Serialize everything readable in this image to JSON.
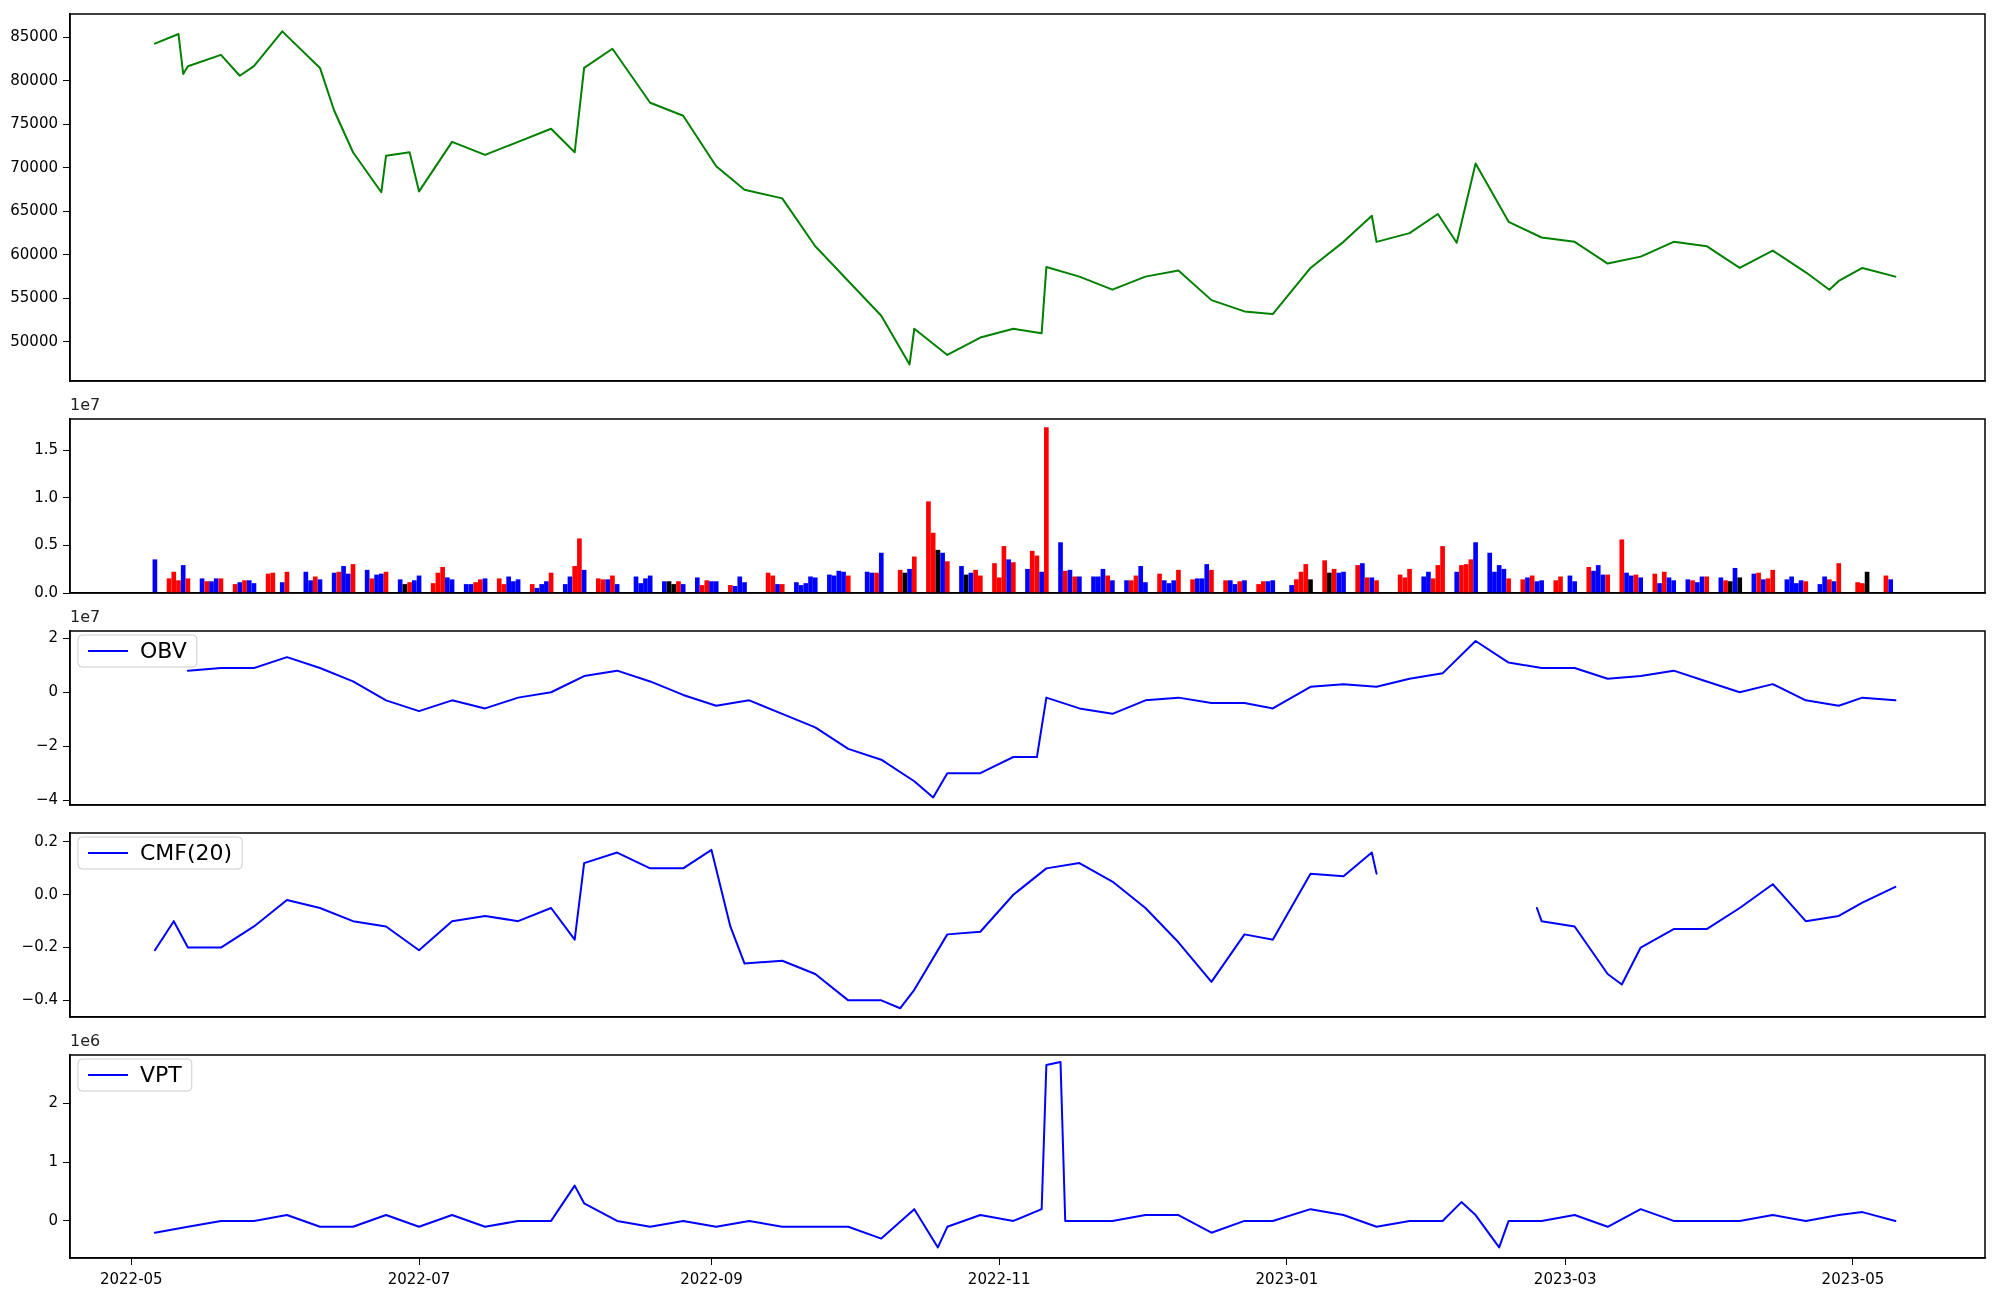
{
  "chart_data": [
    {
      "type": "line",
      "xlim": [
        "2022-04-18",
        "2023-05-29"
      ],
      "ylim": [
        45500,
        87700
      ],
      "yticks": [
        50000,
        55000,
        60000,
        65000,
        70000,
        75000,
        80000,
        85000
      ],
      "tick_labels": "y",
      "series": [
        {
          "color": "#008000",
          "x": [
            "2022-05-06",
            "2022-05-11",
            "2022-05-12",
            "2022-05-13",
            "2022-05-20",
            "2022-05-24",
            "2022-05-27",
            "2022-06-02",
            "2022-06-10",
            "2022-06-13",
            "2022-06-17",
            "2022-06-23",
            "2022-06-24",
            "2022-06-29",
            "2022-07-01",
            "2022-07-08",
            "2022-07-15",
            "2022-07-22",
            "2022-07-29",
            "2022-08-03",
            "2022-08-05",
            "2022-08-11",
            "2022-08-19",
            "2022-08-26",
            "2022-09-02",
            "2022-09-08",
            "2022-09-16",
            "2022-09-23",
            "2022-09-30",
            "2022-10-07",
            "2022-10-13",
            "2022-10-14",
            "2022-10-21",
            "2022-10-28",
            "2022-11-04",
            "2022-11-10",
            "2022-11-11",
            "2022-11-18",
            "2022-11-25",
            "2022-12-02",
            "2022-12-09",
            "2022-12-16",
            "2022-12-23",
            "2022-12-29",
            "2023-01-06",
            "2023-01-13",
            "2023-01-19",
            "2023-01-20",
            "2023-01-27",
            "2023-02-02",
            "2023-02-06",
            "2023-02-10",
            "2023-02-17",
            "2023-02-24",
            "2023-03-03",
            "2023-03-10",
            "2023-03-17",
            "2023-03-24",
            "2023-03-31",
            "2023-04-07",
            "2023-04-14",
            "2023-04-21",
            "2023-04-26",
            "2023-04-28",
            "2023-05-03",
            "2023-05-10"
          ],
          "values": [
            84300,
            85400,
            80800,
            81700,
            83000,
            80600,
            81700,
            85700,
            81500,
            76600,
            71800,
            67200,
            71400,
            71800,
            67300,
            73000,
            71500,
            73000,
            74500,
            71800,
            81500,
            83700,
            77500,
            76000,
            70200,
            67500,
            66500,
            61000,
            57000,
            53000,
            47400,
            51500,
            48500,
            50500,
            51500,
            51000,
            58600,
            57500,
            56000,
            57500,
            58200,
            54800,
            53500,
            53200,
            58500,
            61500,
            64500,
            61500,
            62500,
            64700,
            61400,
            70500,
            63800,
            62000,
            61500,
            59000,
            59800,
            61500,
            61000,
            58500,
            60500,
            58000,
            56000,
            57000,
            58500,
            57500
          ]
        }
      ]
    },
    {
      "type": "bar",
      "xlim": [
        "2022-04-18",
        "2023-05-29"
      ],
      "ylim": [
        0,
        1.83
      ],
      "yticks": [
        {
          "value": 0,
          "label": "0.0"
        },
        {
          "value": 0.5,
          "label": "0.5"
        },
        {
          "value": 1,
          "label": "1.0"
        },
        {
          "value": 1.5,
          "label": "1.5"
        }
      ],
      "tick_labels": "y",
      "annotations": [
        "1e7"
      ],
      "x": [
        "2022-05-06",
        "2022-05-09",
        "2022-05-10",
        "2022-05-11",
        "2022-05-12",
        "2022-05-13",
        "2022-05-16",
        "2022-05-17",
        "2022-05-18",
        "2022-05-19",
        "2022-05-20",
        "2022-05-23",
        "2022-05-24",
        "2022-05-25",
        "2022-05-26",
        "2022-05-27",
        "2022-05-30",
        "2022-05-31",
        "2022-06-02",
        "2022-06-03",
        "2022-06-07",
        "2022-06-08",
        "2022-06-09",
        "2022-06-10",
        "2022-06-13",
        "2022-06-14",
        "2022-06-15",
        "2022-06-16",
        "2022-06-17",
        "2022-06-20",
        "2022-06-21",
        "2022-06-22",
        "2022-06-23",
        "2022-06-24",
        "2022-06-27",
        "2022-06-28",
        "2022-06-29",
        "2022-06-30",
        "2022-07-01",
        "2022-07-04",
        "2022-07-05",
        "2022-07-06",
        "2022-07-07",
        "2022-07-08",
        "2022-07-11",
        "2022-07-12",
        "2022-07-13",
        "2022-07-14",
        "2022-07-15",
        "2022-07-18",
        "2022-07-19",
        "2022-07-20",
        "2022-07-21",
        "2022-07-22",
        "2022-07-25",
        "2022-07-26",
        "2022-07-27",
        "2022-07-28",
        "2022-07-29",
        "2022-08-01",
        "2022-08-02",
        "2022-08-03",
        "2022-08-04",
        "2022-08-05",
        "2022-08-08",
        "2022-08-09",
        "2022-08-10",
        "2022-08-11",
        "2022-08-12",
        "2022-08-16",
        "2022-08-17",
        "2022-08-18",
        "2022-08-19",
        "2022-08-22",
        "2022-08-23",
        "2022-08-24",
        "2022-08-25",
        "2022-08-26",
        "2022-08-29",
        "2022-08-30",
        "2022-08-31",
        "2022-09-01",
        "2022-09-02",
        "2022-09-05",
        "2022-09-06",
        "2022-09-07",
        "2022-09-08",
        "2022-09-13",
        "2022-09-14",
        "2022-09-15",
        "2022-09-16",
        "2022-09-19",
        "2022-09-20",
        "2022-09-21",
        "2022-09-22",
        "2022-09-23",
        "2022-09-26",
        "2022-09-27",
        "2022-09-28",
        "2022-09-29",
        "2022-09-30",
        "2022-10-04",
        "2022-10-05",
        "2022-10-06",
        "2022-10-07",
        "2022-10-11",
        "2022-10-12",
        "2022-10-13",
        "2022-10-14",
        "2022-10-17",
        "2022-10-18",
        "2022-10-19",
        "2022-10-20",
        "2022-10-21",
        "2022-10-24",
        "2022-10-25",
        "2022-10-26",
        "2022-10-27",
        "2022-10-28",
        "2022-10-31",
        "2022-11-01",
        "2022-11-02",
        "2022-11-03",
        "2022-11-04",
        "2022-11-07",
        "2022-11-08",
        "2022-11-09",
        "2022-11-10",
        "2022-11-11",
        "2022-11-14",
        "2022-11-15",
        "2022-11-16",
        "2022-11-17",
        "2022-11-18",
        "2022-11-21",
        "2022-11-22",
        "2022-11-23",
        "2022-11-24",
        "2022-11-25",
        "2022-11-28",
        "2022-11-29",
        "2022-11-30",
        "2022-12-01",
        "2022-12-02",
        "2022-12-05",
        "2022-12-06",
        "2022-12-07",
        "2022-12-08",
        "2022-12-09",
        "2022-12-12",
        "2022-12-13",
        "2022-12-14",
        "2022-12-15",
        "2022-12-16",
        "2022-12-19",
        "2022-12-20",
        "2022-12-21",
        "2022-12-22",
        "2022-12-23",
        "2022-12-26",
        "2022-12-27",
        "2022-12-28",
        "2022-12-29",
        "2023-01-02",
        "2023-01-03",
        "2023-01-04",
        "2023-01-05",
        "2023-01-06",
        "2023-01-09",
        "2023-01-10",
        "2023-01-11",
        "2023-01-12",
        "2023-01-13",
        "2023-01-16",
        "2023-01-17",
        "2023-01-18",
        "2023-01-19",
        "2023-01-20",
        "2023-01-25",
        "2023-01-26",
        "2023-01-27",
        "2023-01-30",
        "2023-01-31",
        "2023-02-01",
        "2023-02-02",
        "2023-02-03",
        "2023-02-06",
        "2023-02-07",
        "2023-02-08",
        "2023-02-09",
        "2023-02-10",
        "2023-02-13",
        "2023-02-14",
        "2023-02-15",
        "2023-02-16",
        "2023-02-17",
        "2023-02-20",
        "2023-02-21",
        "2023-02-22",
        "2023-02-23",
        "2023-02-24",
        "2023-02-27",
        "2023-02-28",
        "2023-03-02",
        "2023-03-03",
        "2023-03-06",
        "2023-03-07",
        "2023-03-08",
        "2023-03-09",
        "2023-03-10",
        "2023-03-13",
        "2023-03-14",
        "2023-03-15",
        "2023-03-16",
        "2023-03-17",
        "2023-03-20",
        "2023-03-21",
        "2023-03-22",
        "2023-03-23",
        "2023-03-24",
        "2023-03-27",
        "2023-03-28",
        "2023-03-29",
        "2023-03-30",
        "2023-03-31",
        "2023-04-03",
        "2023-04-04",
        "2023-04-05",
        "2023-04-06",
        "2023-04-07",
        "2023-04-10",
        "2023-04-11",
        "2023-04-12",
        "2023-04-13",
        "2023-04-14",
        "2023-04-17",
        "2023-04-18",
        "2023-04-19",
        "2023-04-20",
        "2023-04-21",
        "2023-04-24",
        "2023-04-25",
        "2023-04-26",
        "2023-04-27",
        "2023-04-28",
        "2023-05-02",
        "2023-05-03",
        "2023-05-04",
        "2023-05-08",
        "2023-05-09"
      ],
      "values": [
        0.35,
        0.15,
        0.22,
        0.13,
        0.29,
        0.15,
        0.15,
        0.12,
        0.12,
        0.15,
        0.15,
        0.09,
        0.11,
        0.13,
        0.13,
        0.1,
        0.2,
        0.21,
        0.11,
        0.22,
        0.22,
        0.13,
        0.17,
        0.14,
        0.21,
        0.22,
        0.28,
        0.2,
        0.3,
        0.24,
        0.15,
        0.19,
        0.2,
        0.22,
        0.14,
        0.09,
        0.11,
        0.13,
        0.18,
        0.1,
        0.21,
        0.27,
        0.16,
        0.14,
        0.09,
        0.09,
        0.11,
        0.14,
        0.15,
        0.15,
        0.09,
        0.17,
        0.12,
        0.14,
        0.09,
        0.05,
        0.09,
        0.12,
        0.21,
        0.09,
        0.17,
        0.28,
        0.57,
        0.24,
        0.15,
        0.14,
        0.14,
        0.18,
        0.09,
        0.17,
        0.1,
        0.15,
        0.18,
        0.12,
        0.12,
        0.09,
        0.12,
        0.09,
        0.16,
        0.08,
        0.13,
        0.12,
        0.12,
        0.08,
        0.07,
        0.17,
        0.11,
        0.21,
        0.18,
        0.09,
        0.09,
        0.11,
        0.08,
        0.1,
        0.17,
        0.16,
        0.19,
        0.18,
        0.23,
        0.22,
        0.18,
        0.22,
        0.21,
        0.21,
        0.42,
        0.24,
        0.21,
        0.25,
        0.38,
        0.96,
        0.63,
        0.45,
        0.42,
        0.33,
        0.28,
        0.19,
        0.21,
        0.24,
        0.18,
        0.31,
        0.16,
        0.49,
        0.35,
        0.32,
        0.25,
        0.44,
        0.39,
        0.22,
        1.74,
        0.53,
        0.23,
        0.24,
        0.17,
        0.17,
        0.17,
        0.17,
        0.25,
        0.18,
        0.13,
        0.13,
        0.13,
        0.18,
        0.28,
        0.11,
        0.2,
        0.13,
        0.1,
        0.13,
        0.24,
        0.14,
        0.15,
        0.15,
        0.3,
        0.24,
        0.13,
        0.13,
        0.09,
        0.12,
        0.13,
        0.09,
        0.12,
        0.12,
        0.13,
        0.08,
        0.14,
        0.22,
        0.3,
        0.14,
        0.34,
        0.21,
        0.25,
        0.21,
        0.22,
        0.29,
        0.31,
        0.16,
        0.16,
        0.13,
        0.19,
        0.16,
        0.25,
        0.17,
        0.22,
        0.15,
        0.29,
        0.49,
        0.22,
        0.29,
        0.3,
        0.35,
        0.53,
        0.42,
        0.22,
        0.29,
        0.25,
        0.15,
        0.14,
        0.16,
        0.18,
        0.12,
        0.13,
        0.13,
        0.17,
        0.18,
        0.12,
        0.27,
        0.23,
        0.29,
        0.19,
        0.19,
        0.56,
        0.21,
        0.18,
        0.19,
        0.16,
        0.2,
        0.1,
        0.22,
        0.16,
        0.13,
        0.14,
        0.13,
        0.11,
        0.17,
        0.17,
        0.16,
        0.13,
        0.12,
        0.26,
        0.16,
        0.2,
        0.21,
        0.14,
        0.15,
        0.24,
        0.14,
        0.17,
        0.1,
        0.13,
        0.12,
        0.09,
        0.17,
        0.14,
        0.12,
        0.31,
        0.11,
        0.1,
        0.22,
        0.18,
        0.14
      ],
      "colors": [
        "#0000ff",
        "#ff0000",
        "#ff0000",
        "#ff0000",
        "#0000ff",
        "#ff0000",
        "#0000ff",
        "#ff0000",
        "#0000ff",
        "#0000ff",
        "#ff0000",
        "#ff0000",
        "#0000ff",
        "#ff0000",
        "#0000ff",
        "#0000ff",
        "#ff0000",
        "#ff0000",
        "#0000ff",
        "#ff0000",
        "#0000ff",
        "#0000ff",
        "#ff0000",
        "#0000ff",
        "#0000ff",
        "#ff0000",
        "#0000ff",
        "#0000ff",
        "#ff0000",
        "#0000ff",
        "#ff0000",
        "#0000ff",
        "#0000ff",
        "#ff0000",
        "#0000ff",
        "#000000",
        "#ff0000",
        "#0000ff",
        "#0000ff",
        "#ff0000",
        "#ff0000",
        "#ff0000",
        "#0000ff",
        "#0000ff",
        "#0000ff",
        "#0000ff",
        "#ff0000",
        "#ff0000",
        "#0000ff",
        "#ff0000",
        "#ff0000",
        "#0000ff",
        "#0000ff",
        "#0000ff",
        "#ff0000",
        "#0000ff",
        "#0000ff",
        "#0000ff",
        "#ff0000",
        "#0000ff",
        "#0000ff",
        "#ff0000",
        "#ff0000",
        "#0000ff",
        "#ff0000",
        "#ff0000",
        "#0000ff",
        "#ff0000",
        "#0000ff",
        "#0000ff",
        "#0000ff",
        "#0000ff",
        "#0000ff",
        "#0000ff",
        "#000000",
        "#000000",
        "#ff0000",
        "#0000ff",
        "#0000ff",
        "#ff0000",
        "#ff0000",
        "#0000ff",
        "#0000ff",
        "#ff0000",
        "#0000ff",
        "#0000ff",
        "#0000ff",
        "#ff0000",
        "#ff0000",
        "#0000ff",
        "#ff0000",
        "#0000ff",
        "#0000ff",
        "#0000ff",
        "#0000ff",
        "#0000ff",
        "#0000ff",
        "#0000ff",
        "#0000ff",
        "#0000ff",
        "#ff0000",
        "#0000ff",
        "#0000ff",
        "#ff0000",
        "#0000ff",
        "#ff0000",
        "#000000",
        "#0000ff",
        "#ff0000",
        "#ff0000",
        "#ff0000",
        "#000000",
        "#0000ff",
        "#ff0000",
        "#0000ff",
        "#000000",
        "#0000ff",
        "#ff0000",
        "#ff0000",
        "#ff0000",
        "#ff0000",
        "#ff0000",
        "#0000ff",
        "#ff0000",
        "#0000ff",
        "#ff0000",
        "#ff0000",
        "#0000ff",
        "#ff0000",
        "#0000ff",
        "#ff0000",
        "#0000ff",
        "#ff0000",
        "#0000ff",
        "#0000ff",
        "#0000ff",
        "#0000ff",
        "#ff0000",
        "#0000ff",
        "#0000ff",
        "#ff0000",
        "#ff0000",
        "#0000ff",
        "#0000ff",
        "#ff0000",
        "#0000ff",
        "#0000ff",
        "#0000ff",
        "#ff0000",
        "#ff0000",
        "#0000ff",
        "#0000ff",
        "#0000ff",
        "#ff0000",
        "#ff0000",
        "#0000ff",
        "#0000ff",
        "#ff0000",
        "#0000ff",
        "#ff0000",
        "#ff0000",
        "#0000ff",
        "#0000ff",
        "#0000ff",
        "#ff0000",
        "#ff0000",
        "#ff0000",
        "#000000",
        "#ff0000",
        "#000000",
        "#ff0000",
        "#0000ff",
        "#0000ff",
        "#ff0000",
        "#0000ff",
        "#ff0000",
        "#0000ff",
        "#ff0000",
        "#ff0000",
        "#ff0000",
        "#ff0000",
        "#0000ff",
        "#0000ff",
        "#ff0000",
        "#ff0000",
        "#ff0000",
        "#0000ff",
        "#ff0000",
        "#ff0000",
        "#ff0000",
        "#0000ff",
        "#0000ff",
        "#0000ff",
        "#0000ff",
        "#0000ff",
        "#ff0000",
        "#ff0000",
        "#0000ff",
        "#ff0000",
        "#0000ff",
        "#0000ff",
        "#ff0000",
        "#ff0000",
        "#0000ff",
        "#0000ff",
        "#ff0000",
        "#0000ff",
        "#0000ff",
        "#0000ff",
        "#ff0000",
        "#ff0000",
        "#0000ff",
        "#0000ff",
        "#ff0000",
        "#0000ff",
        "#ff0000",
        "#0000ff",
        "#ff0000",
        "#0000ff",
        "#0000ff",
        "#0000ff",
        "#ff0000",
        "#0000ff",
        "#0000ff",
        "#ff0000",
        "#0000ff",
        "#ff0000",
        "#000000",
        "#0000ff",
        "#000000",
        "#0000ff",
        "#ff0000",
        "#0000ff",
        "#ff0000",
        "#ff0000",
        "#0000ff",
        "#0000ff",
        "#0000ff",
        "#0000ff",
        "#ff0000",
        "#0000ff",
        "#0000ff",
        "#ff0000",
        "#0000ff",
        "#ff0000",
        "#ff0000",
        "#ff0000",
        "#000000",
        "#ff0000",
        "#0000ff"
      ]
    },
    {
      "type": "line",
      "xlim": [
        "2022-04-18",
        "2023-05-29"
      ],
      "ylim": [
        -4.18,
        2.27
      ],
      "yticks": [
        {
          "value": -4,
          "label": "−4"
        },
        {
          "value": -2,
          "label": "−2"
        },
        {
          "value": 0,
          "label": "0"
        },
        {
          "value": 2,
          "label": "2"
        }
      ],
      "tick_labels": "y",
      "legend": "top left",
      "annotations": [
        "1e7"
      ],
      "series": [
        {
          "name": "OBV",
          "color": "#0000ff",
          "x": [
            "2022-05-13",
            "2022-05-20",
            "2022-05-27",
            "2022-06-03",
            "2022-06-10",
            "2022-06-17",
            "2022-06-24",
            "2022-07-01",
            "2022-07-08",
            "2022-07-15",
            "2022-07-22",
            "2022-07-29",
            "2022-08-05",
            "2022-08-12",
            "2022-08-19",
            "2022-08-26",
            "2022-09-02",
            "2022-09-09",
            "2022-09-16",
            "2022-09-23",
            "2022-09-30",
            "2022-10-07",
            "2022-10-14",
            "2022-10-18",
            "2022-10-21",
            "2022-10-28",
            "2022-11-04",
            "2022-11-09",
            "2022-11-11",
            "2022-11-18",
            "2022-11-25",
            "2022-12-02",
            "2022-12-09",
            "2022-12-16",
            "2022-12-23",
            "2022-12-29",
            "2023-01-06",
            "2023-01-13",
            "2023-01-20",
            "2023-01-27",
            "2023-02-03",
            "2023-02-10",
            "2023-02-17",
            "2023-02-24",
            "2023-03-03",
            "2023-03-10",
            "2023-03-17",
            "2023-03-24",
            "2023-03-31",
            "2023-04-07",
            "2023-04-14",
            "2023-04-21",
            "2023-04-28",
            "2023-05-03",
            "2023-05-10"
          ],
          "values": [
            0.8,
            0.9,
            0.9,
            1.3,
            0.9,
            0.4,
            -0.3,
            -0.7,
            -0.3,
            -0.6,
            -0.2,
            0.0,
            0.6,
            0.8,
            0.4,
            -0.1,
            -0.5,
            -0.3,
            -0.8,
            -1.3,
            -2.1,
            -2.5,
            -3.3,
            -3.9,
            -3.0,
            -3.0,
            -2.4,
            -2.4,
            -0.2,
            -0.6,
            -0.8,
            -0.3,
            -0.2,
            -0.4,
            -0.4,
            -0.6,
            0.2,
            0.3,
            0.2,
            0.5,
            0.7,
            1.9,
            1.1,
            0.9,
            0.9,
            0.5,
            0.6,
            0.8,
            0.4,
            0.0,
            0.3,
            -0.3,
            -0.5,
            -0.2,
            -0.3
          ]
        }
      ]
    },
    {
      "type": "line",
      "xlim": [
        "2022-04-18",
        "2023-05-29"
      ],
      "ylim": [
        -0.463,
        0.234
      ],
      "yticks": [
        {
          "value": -0.4,
          "label": "−0.4"
        },
        {
          "value": -0.2,
          "label": "−0.2"
        },
        {
          "value": 0,
          "label": "0.0"
        },
        {
          "value": 0.2,
          "label": "0.2"
        }
      ],
      "tick_labels": "y",
      "legend": "top left",
      "series": [
        {
          "name": "CMF(20)",
          "color": "#0000ff",
          "x": [
            "2022-05-06",
            "2022-05-10",
            "2022-05-13",
            "2022-05-20",
            "2022-05-27",
            "2022-06-03",
            "2022-06-10",
            "2022-06-17",
            "2022-06-24",
            "2022-07-01",
            "2022-07-08",
            "2022-07-15",
            "2022-07-22",
            "2022-07-29",
            "2022-08-03",
            "2022-08-05",
            "2022-08-12",
            "2022-08-19",
            "2022-08-26",
            "2022-09-01",
            "2022-09-05",
            "2022-09-08",
            "2022-09-16",
            "2022-09-23",
            "2022-09-30",
            "2022-10-07",
            "2022-10-11",
            "2022-10-14",
            "2022-10-21",
            "2022-10-28",
            "2022-11-04",
            "2022-11-11",
            "2022-11-18",
            "2022-11-25",
            "2022-12-02",
            "2022-12-09",
            "2022-12-16",
            "2022-12-23",
            "2022-12-29",
            "2023-01-06",
            "2023-01-13",
            "2023-01-19",
            "2023-01-20",
            "2023-02-07",
            "2023-02-23",
            "2023-02-24",
            "2023-03-03",
            "2023-03-10",
            "2023-03-13",
            "2023-03-17",
            "2023-03-24",
            "2023-03-31",
            "2023-04-07",
            "2023-04-14",
            "2023-04-21",
            "2023-04-28",
            "2023-05-03",
            "2023-05-10"
          ],
          "values": [
            -0.21,
            -0.1,
            -0.2,
            -0.2,
            -0.12,
            -0.02,
            -0.05,
            -0.1,
            -0.12,
            -0.21,
            -0.1,
            -0.08,
            -0.1,
            -0.05,
            -0.17,
            0.12,
            0.16,
            0.1,
            0.1,
            0.17,
            -0.12,
            -0.26,
            -0.25,
            -0.3,
            -0.4,
            -0.4,
            -0.43,
            -0.36,
            -0.15,
            -0.14,
            0.0,
            0.1,
            0.12,
            0.05,
            -0.05,
            -0.18,
            -0.33,
            -0.15,
            -0.17,
            0.08,
            0.07,
            0.16,
            0.08,
            null,
            -0.05,
            -0.1,
            -0.12,
            -0.3,
            -0.34,
            -0.2,
            -0.13,
            -0.13,
            -0.05,
            0.04,
            -0.1,
            -0.08,
            -0.03,
            0.03
          ]
        }
      ]
    },
    {
      "type": "line",
      "xlim": [
        "2022-04-18",
        "2023-05-29"
      ],
      "xticks": [
        {
          "value": "2022-05-01",
          "label": "2022-05"
        },
        {
          "value": "2022-07-01",
          "label": "2022-07"
        },
        {
          "value": "2022-09-01",
          "label": "2022-09"
        },
        {
          "value": "2022-11-01",
          "label": "2022-11"
        },
        {
          "value": "2023-01-01",
          "label": "2023-01"
        },
        {
          "value": "2023-03-01",
          "label": "2023-03"
        },
        {
          "value": "2023-05-01",
          "label": "2023-05"
        }
      ],
      "ylim": [
        -0.63,
        2.82
      ],
      "yticks": [
        0,
        1,
        2
      ],
      "legend": "top left",
      "annotations": [
        "1e6"
      ],
      "series": [
        {
          "name": "VPT",
          "color": "#0000ff",
          "x": [
            "2022-05-06",
            "2022-05-13",
            "2022-05-20",
            "2022-05-27",
            "2022-06-03",
            "2022-06-10",
            "2022-06-17",
            "2022-06-24",
            "2022-07-01",
            "2022-07-08",
            "2022-07-15",
            "2022-07-22",
            "2022-07-29",
            "2022-08-03",
            "2022-08-05",
            "2022-08-12",
            "2022-08-19",
            "2022-08-26",
            "2022-09-02",
            "2022-09-09",
            "2022-09-16",
            "2022-09-23",
            "2022-09-30",
            "2022-10-07",
            "2022-10-14",
            "2022-10-19",
            "2022-10-21",
            "2022-10-28",
            "2022-11-04",
            "2022-11-10",
            "2022-11-11",
            "2022-11-14",
            "2022-11-15",
            "2022-11-18",
            "2022-11-25",
            "2022-12-02",
            "2022-12-09",
            "2022-12-16",
            "2022-12-23",
            "2022-12-29",
            "2023-01-06",
            "2023-01-13",
            "2023-01-20",
            "2023-01-27",
            "2023-02-03",
            "2023-02-07",
            "2023-02-10",
            "2023-02-15",
            "2023-02-17",
            "2023-02-24",
            "2023-03-03",
            "2023-03-10",
            "2023-03-17",
            "2023-03-24",
            "2023-03-31",
            "2023-04-07",
            "2023-04-14",
            "2023-04-21",
            "2023-04-28",
            "2023-05-03",
            "2023-05-10"
          ],
          "values": [
            -0.2,
            -0.1,
            0.0,
            0.0,
            0.1,
            -0.1,
            -0.1,
            0.1,
            -0.1,
            0.1,
            -0.1,
            0.0,
            0.0,
            0.6,
            0.3,
            0.0,
            -0.1,
            0.0,
            -0.1,
            0.0,
            -0.1,
            -0.1,
            -0.1,
            -0.3,
            0.2,
            -0.45,
            -0.1,
            0.1,
            0.0,
            0.2,
            2.65,
            2.7,
            0.0,
            0.0,
            0.0,
            0.1,
            0.1,
            -0.2,
            0.0,
            0.0,
            0.2,
            0.1,
            -0.1,
            0.0,
            0.0,
            0.32,
            0.1,
            -0.45,
            0.0,
            0.0,
            0.1,
            -0.1,
            0.2,
            0.0,
            0.0,
            0.0,
            0.1,
            0.0,
            0.1,
            0.15,
            0.0
          ]
        }
      ]
    }
  ]
}
